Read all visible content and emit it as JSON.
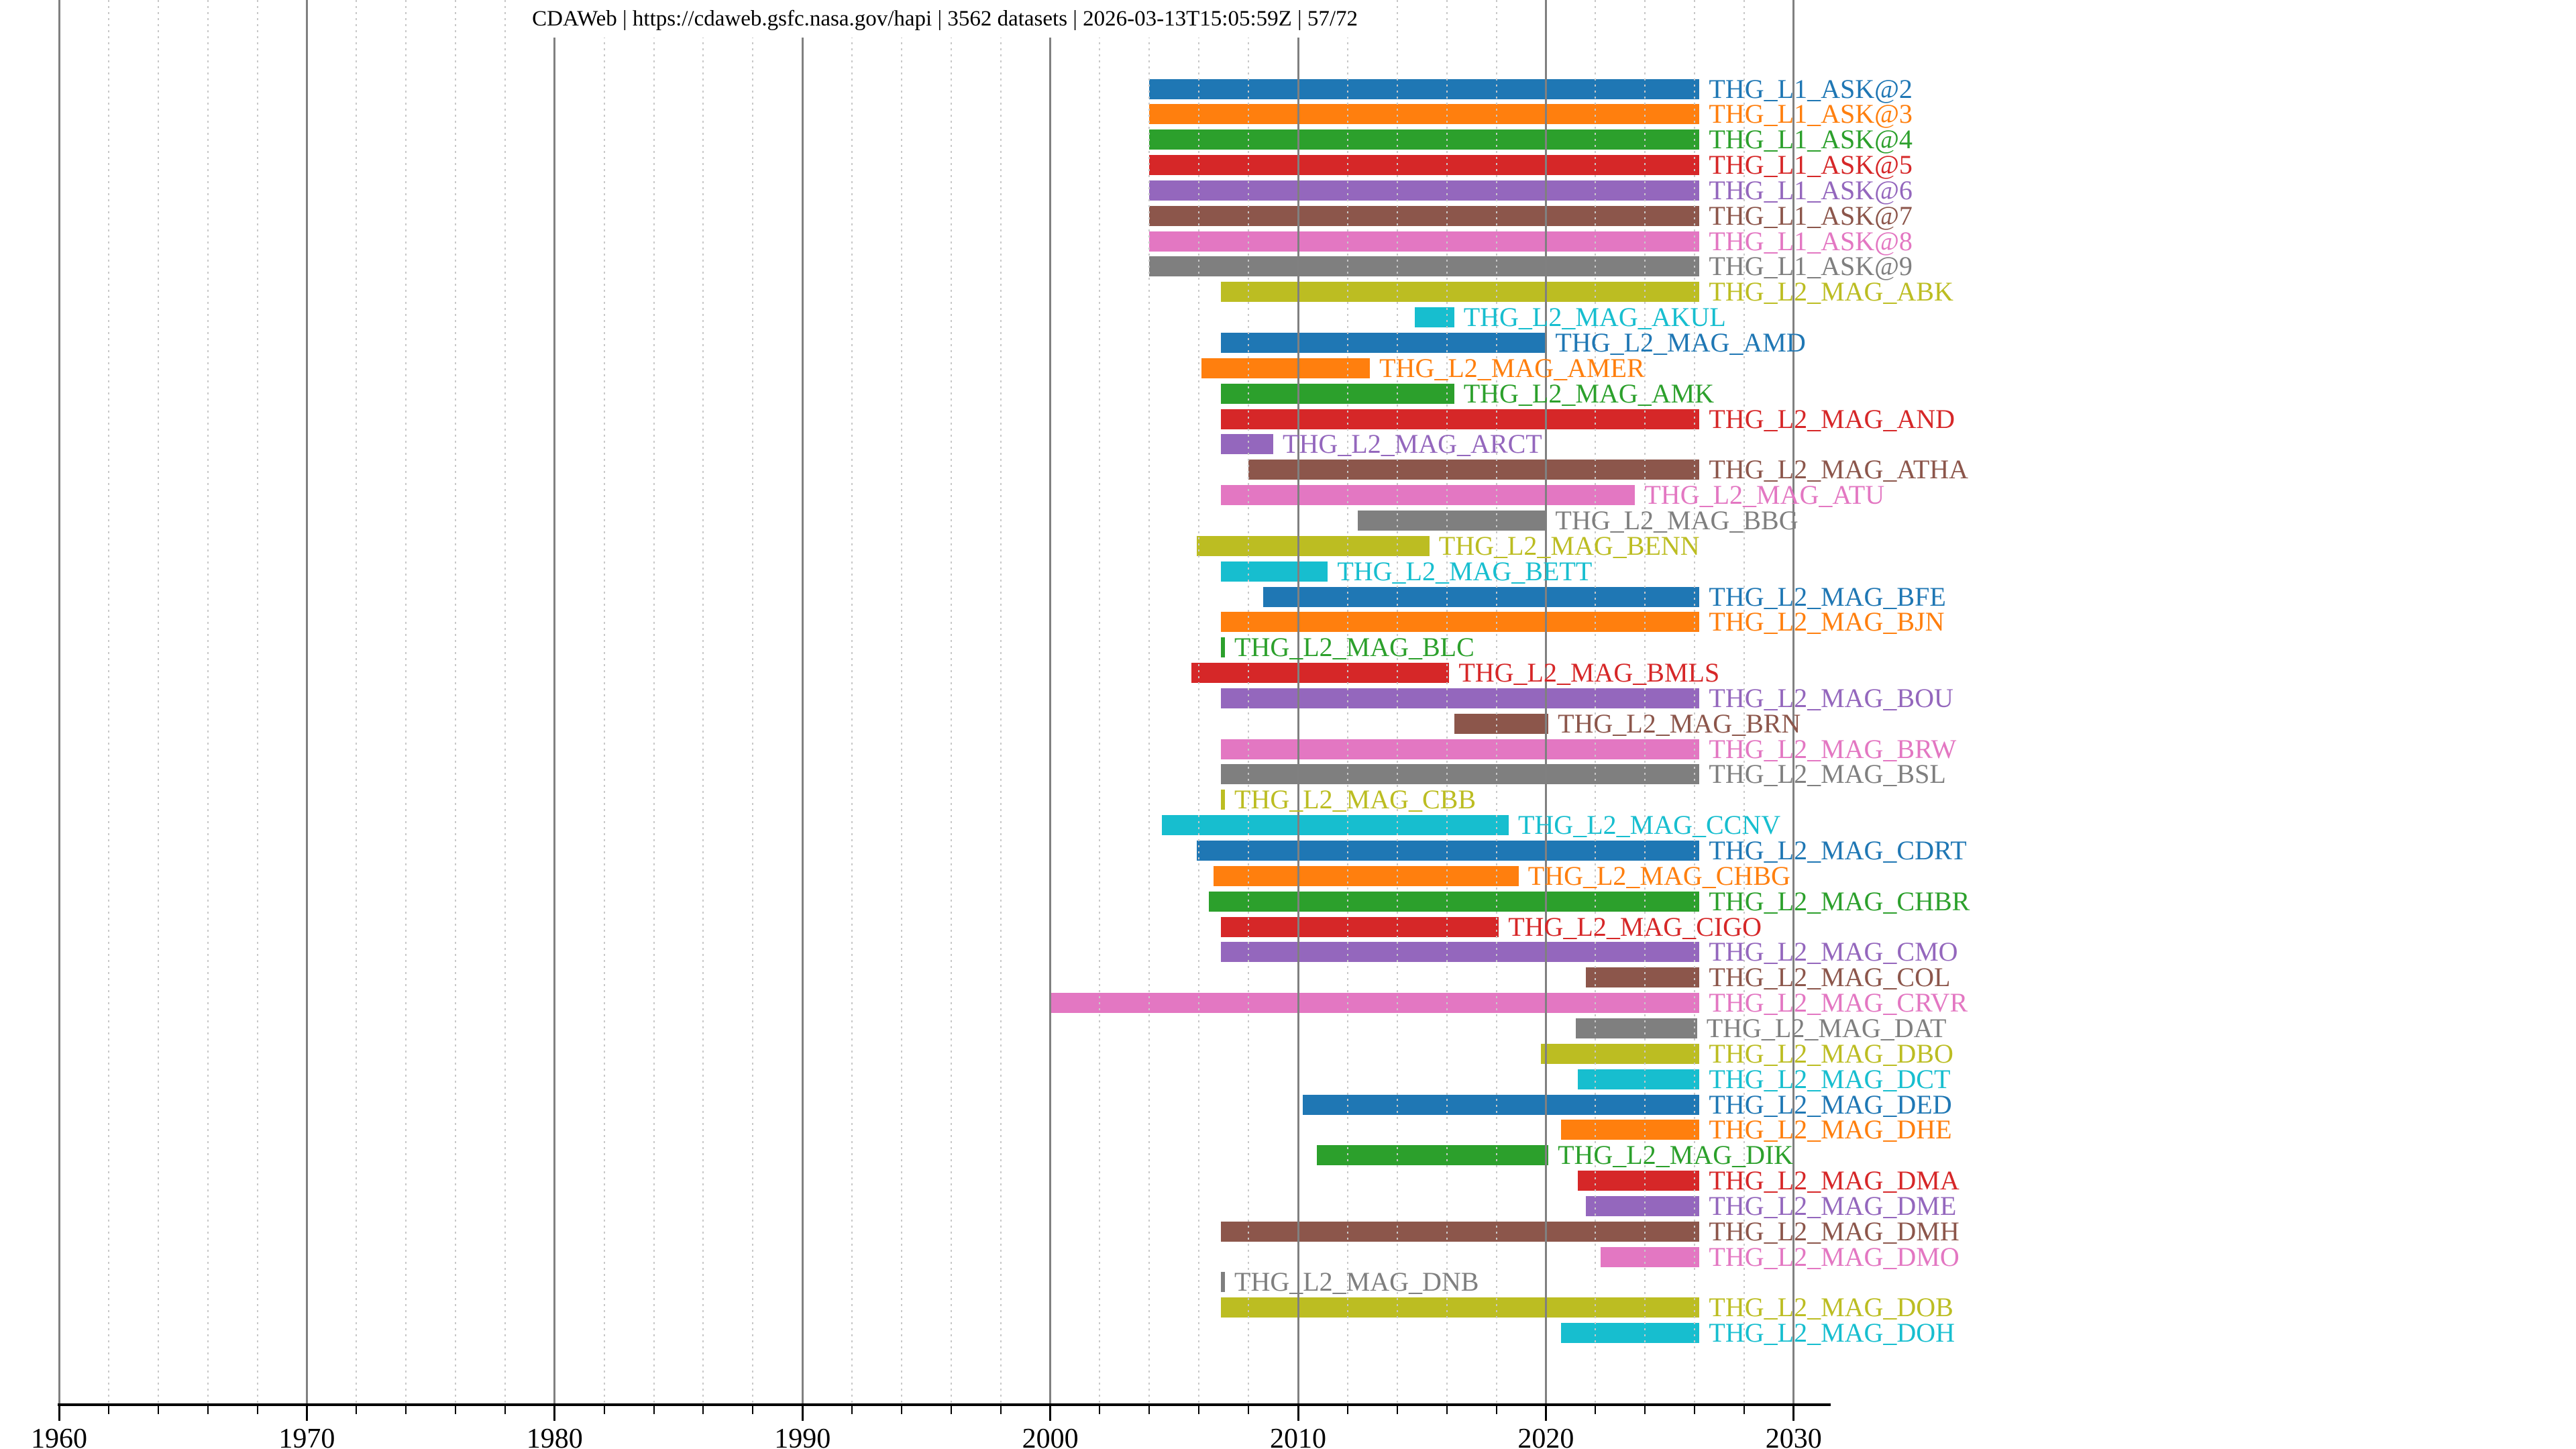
{
  "title": "CDAWeb | https://cdaweb.gsfc.nasa.gov/hapi | 3562 datasets | 2026-03-13T15:05:59Z | 57/72",
  "chart_data": {
    "type": "bar",
    "subtype": "horizontal-range-timeline",
    "title": "CDAWeb | https://cdaweb.gsfc.nasa.gov/hapi | 3562 datasets | 2026-03-13T15:05:59Z | 57/72",
    "xlabel": "",
    "ylabel": "",
    "legend": "none",
    "x_axis": {
      "min": 1960,
      "max": 2031.5,
      "major_ticks": [
        1960,
        1970,
        1980,
        1990,
        2000,
        2010,
        2020,
        2030
      ],
      "minor_tick_step_years": 2,
      "major_grid": true,
      "minor_grid": true
    },
    "colors": {
      "palette_tab10": [
        "#1f77b4",
        "#ff7f0e",
        "#2ca02c",
        "#d62728",
        "#9467bd",
        "#8c564b",
        "#e377c2",
        "#7f7f7f",
        "#bcbd22",
        "#17becf"
      ],
      "major_grid": "#808080",
      "minor_grid": "#c8c8c8",
      "axis": "#000000",
      "text": "#000000",
      "background": "#ffffff"
    },
    "series": [
      {
        "label": "THG_L1_ASK@2",
        "start": 2004.0,
        "end": 2026.2
      },
      {
        "label": "THG_L1_ASK@3",
        "start": 2004.0,
        "end": 2026.2
      },
      {
        "label": "THG_L1_ASK@4",
        "start": 2004.0,
        "end": 2026.2
      },
      {
        "label": "THG_L1_ASK@5",
        "start": 2004.0,
        "end": 2026.2
      },
      {
        "label": "THG_L1_ASK@6",
        "start": 2004.0,
        "end": 2026.2
      },
      {
        "label": "THG_L1_ASK@7",
        "start": 2004.0,
        "end": 2026.2
      },
      {
        "label": "THG_L1_ASK@8",
        "start": 2004.0,
        "end": 2026.2
      },
      {
        "label": "THG_L1_ASK@9",
        "start": 2004.0,
        "end": 2026.2
      },
      {
        "label": "THG_L2_MAG_ABK",
        "start": 2006.9,
        "end": 2026.2
      },
      {
        "label": "THG_L2_MAG_AKUL",
        "start": 2014.7,
        "end": 2016.3
      },
      {
        "label": "THG_L2_MAG_AMD",
        "start": 2006.9,
        "end": 2020.0
      },
      {
        "label": "THG_L2_MAG_AMER",
        "start": 2006.1,
        "end": 2012.9
      },
      {
        "label": "THG_L2_MAG_AMK",
        "start": 2006.9,
        "end": 2016.3
      },
      {
        "label": "THG_L2_MAG_AND",
        "start": 2006.9,
        "end": 2026.2
      },
      {
        "label": "THG_L2_MAG_ARCT",
        "start": 2006.9,
        "end": 2009.0
      },
      {
        "label": "THG_L2_MAG_ATHA",
        "start": 2008.0,
        "end": 2026.2
      },
      {
        "label": "THG_L2_MAG_ATU",
        "start": 2006.9,
        "end": 2023.6
      },
      {
        "label": "THG_L2_MAG_BBG",
        "start": 2012.4,
        "end": 2020.0
      },
      {
        "label": "THG_L2_MAG_BENN",
        "start": 2005.9,
        "end": 2015.3
      },
      {
        "label": "THG_L2_MAG_BETT",
        "start": 2006.9,
        "end": 2011.2
      },
      {
        "label": "THG_L2_MAG_BFE",
        "start": 2008.6,
        "end": 2026.2
      },
      {
        "label": "THG_L2_MAG_BJN",
        "start": 2006.9,
        "end": 2026.2
      },
      {
        "label": "THG_L2_MAG_BLC",
        "start": 2006.9,
        "end": 2007.05
      },
      {
        "label": "THG_L2_MAG_BMLS",
        "start": 2005.7,
        "end": 2016.1
      },
      {
        "label": "THG_L2_MAG_BOU",
        "start": 2006.9,
        "end": 2026.2
      },
      {
        "label": "THG_L2_MAG_BRN",
        "start": 2016.3,
        "end": 2020.1
      },
      {
        "label": "THG_L2_MAG_BRW",
        "start": 2006.9,
        "end": 2026.2
      },
      {
        "label": "THG_L2_MAG_BSL",
        "start": 2006.9,
        "end": 2026.2
      },
      {
        "label": "THG_L2_MAG_CBB",
        "start": 2006.9,
        "end": 2007.05
      },
      {
        "label": "THG_L2_MAG_CCNV",
        "start": 2004.5,
        "end": 2018.5
      },
      {
        "label": "THG_L2_MAG_CDRT",
        "start": 2005.9,
        "end": 2026.2
      },
      {
        "label": "THG_L2_MAG_CHBG",
        "start": 2006.6,
        "end": 2018.9
      },
      {
        "label": "THG_L2_MAG_CHBR",
        "start": 2006.4,
        "end": 2026.2
      },
      {
        "label": "THG_L2_MAG_CIGO",
        "start": 2006.9,
        "end": 2018.1
      },
      {
        "label": "THG_L2_MAG_CMO",
        "start": 2006.9,
        "end": 2026.2
      },
      {
        "label": "THG_L2_MAG_COL",
        "start": 2021.6,
        "end": 2026.2
      },
      {
        "label": "THG_L2_MAG_CRVR",
        "start": 2000.0,
        "end": 2026.2
      },
      {
        "label": "THG_L2_MAG_DAT",
        "start": 2021.2,
        "end": 2026.1
      },
      {
        "label": "THG_L2_MAG_DBO",
        "start": 2019.8,
        "end": 2026.2
      },
      {
        "label": "THG_L2_MAG_DCT",
        "start": 2021.3,
        "end": 2026.2
      },
      {
        "label": "THG_L2_MAG_DED",
        "start": 2010.2,
        "end": 2026.2
      },
      {
        "label": "THG_L2_MAG_DHE",
        "start": 2020.6,
        "end": 2026.2
      },
      {
        "label": "THG_L2_MAG_DIK",
        "start": 2010.75,
        "end": 2020.1
      },
      {
        "label": "THG_L2_MAG_DMA",
        "start": 2021.3,
        "end": 2026.2
      },
      {
        "label": "THG_L2_MAG_DME",
        "start": 2021.6,
        "end": 2026.2
      },
      {
        "label": "THG_L2_MAG_DMH",
        "start": 2006.9,
        "end": 2026.2
      },
      {
        "label": "THG_L2_MAG_DMO",
        "start": 2022.2,
        "end": 2026.2
      },
      {
        "label": "THG_L2_MAG_DNB",
        "start": 2006.9,
        "end": 2007.05
      },
      {
        "label": "THG_L2_MAG_DOB",
        "start": 2006.9,
        "end": 2026.2
      },
      {
        "label": "THG_L2_MAG_DOH",
        "start": 2020.6,
        "end": 2026.2
      }
    ]
  }
}
